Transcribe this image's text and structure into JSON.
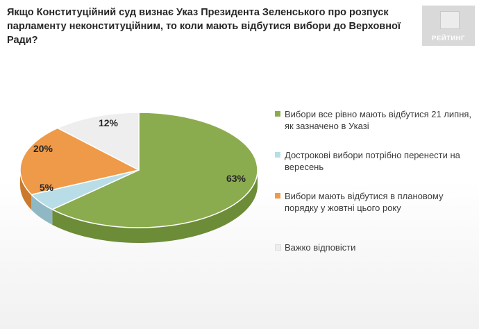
{
  "title": "Якщо Конституційний суд визнає Указ Президента Зеленського про розпуск парламенту неконституційним, то коли мають відбутися вибори до Верховної Ради?",
  "logo": {
    "text": "РЕЙТИНГ"
  },
  "chart_data": {
    "type": "pie",
    "title": "Якщо Конституційний суд визнає Указ Президента Зеленського про розпуск парламенту неконституційним, то коли мають відбутися вибори до Верховної Ради?",
    "legend_position": "right",
    "slices": [
      {
        "label": "Вибори все рівно мають відбутися 21 липня, як зазначено в Указі",
        "value": 63,
        "display": "63%",
        "color": "#8bac4e",
        "side_color": "#6d8c38"
      },
      {
        "label": "Дострокові вибори потрібно перенести на вересень",
        "value": 5,
        "display": "5%",
        "color": "#b8dde7",
        "side_color": "#8fb8c4"
      },
      {
        "label": "Вибори мають відбутися в плановому порядку у жовтні цього року",
        "value": 20,
        "display": "20%",
        "color": "#ef9a48",
        "side_color": "#c97a2c"
      },
      {
        "label": "Важко відповісти",
        "value": 12,
        "display": "12%",
        "color": "#eeeeee",
        "side_color": "#cfcfcf"
      }
    ]
  }
}
